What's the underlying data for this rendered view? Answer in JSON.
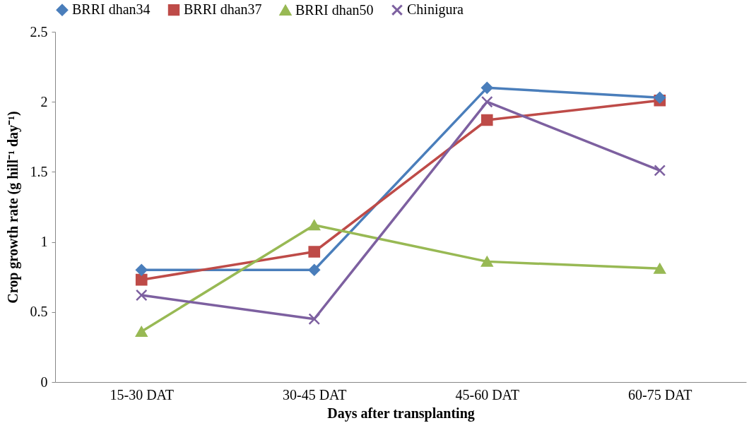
{
  "chart_data": {
    "type": "line",
    "xlabel": "Days after transplanting",
    "ylabel": "Crop growth rate (g hill⁻¹ day⁻¹)",
    "categories": [
      "15-30 DAT",
      "30-45 DAT",
      "45-60 DAT",
      "60-75 DAT"
    ],
    "ylim": [
      0,
      2.5
    ],
    "yticks": [
      0,
      0.5,
      1,
      1.5,
      2,
      2.5
    ],
    "grid": false,
    "legend": "top",
    "line_style": "solid",
    "series": [
      {
        "name": "BRRI dhan34",
        "color": "#4a7ebb",
        "marker": "diamond",
        "values": [
          0.8,
          0.8,
          2.1,
          2.03
        ]
      },
      {
        "name": "BRRI dhan37",
        "color": "#be4b48",
        "marker": "square",
        "values": [
          0.73,
          0.93,
          1.87,
          2.01
        ]
      },
      {
        "name": "BRRI dhan50",
        "color": "#98b954",
        "marker": "triangle",
        "values": [
          0.36,
          1.12,
          0.86,
          0.81
        ]
      },
      {
        "name": "Chinigura",
        "color": "#7d60a0",
        "marker": "cross",
        "values": [
          0.62,
          0.45,
          2.0,
          1.51
        ]
      }
    ]
  }
}
